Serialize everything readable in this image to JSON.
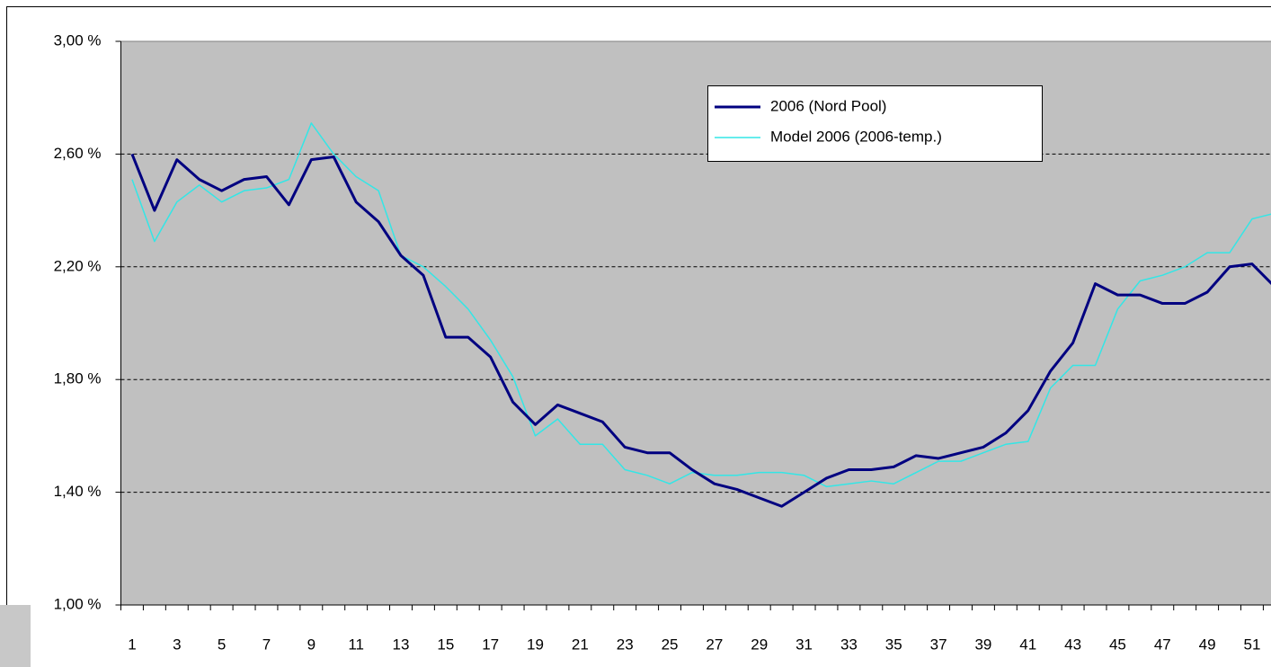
{
  "chart_data": {
    "type": "line",
    "categories": [
      1,
      null,
      3,
      null,
      5,
      null,
      7,
      null,
      9,
      null,
      11,
      null,
      13,
      null,
      15,
      null,
      17,
      null,
      19,
      null,
      21,
      null,
      23,
      null,
      25,
      null,
      27,
      null,
      29,
      null,
      31,
      null,
      33,
      null,
      35,
      null,
      37,
      null,
      39,
      null,
      41,
      null,
      43,
      null,
      45,
      null,
      47,
      null,
      49,
      null,
      51,
      null
    ],
    "series": [
      {
        "name": "2006 (Nord Pool)",
        "color": "#000080",
        "values": [
          2.6,
          2.4,
          2.58,
          2.51,
          2.47,
          2.51,
          2.52,
          2.42,
          2.58,
          2.59,
          2.43,
          2.36,
          2.24,
          2.17,
          1.95,
          1.95,
          1.88,
          1.72,
          1.64,
          1.71,
          1.68,
          1.65,
          1.56,
          1.54,
          1.54,
          1.48,
          1.43,
          1.41,
          1.38,
          1.35,
          1.4,
          1.45,
          1.48,
          1.48,
          1.49,
          1.53,
          1.52,
          1.54,
          1.56,
          1.61,
          1.69,
          1.83,
          1.93,
          2.14,
          2.1,
          2.1,
          2.07,
          2.07,
          2.11,
          2.2,
          2.21,
          2.13
        ]
      },
      {
        "name": "Model 2006 (2006-temp.)",
        "color": "#33e6e6",
        "values": [
          2.51,
          2.29,
          2.43,
          2.49,
          2.43,
          2.47,
          2.48,
          2.51,
          2.71,
          2.6,
          2.52,
          2.47,
          2.24,
          2.2,
          2.13,
          2.05,
          1.94,
          1.81,
          1.6,
          1.66,
          1.57,
          1.57,
          1.48,
          1.46,
          1.43,
          1.47,
          1.46,
          1.46,
          1.47,
          1.47,
          1.46,
          1.42,
          1.43,
          1.44,
          1.43,
          1.47,
          1.51,
          1.51,
          1.54,
          1.57,
          1.58,
          1.77,
          1.85,
          1.85,
          2.05,
          2.15,
          2.17,
          2.2,
          2.25,
          2.25,
          2.37,
          2.39
        ]
      }
    ],
    "ylim": [
      1.0,
      3.0
    ],
    "yticks": [
      {
        "value": 1.0,
        "label": "1,00 %"
      },
      {
        "value": 1.4,
        "label": "1,40 %"
      },
      {
        "value": 1.8,
        "label": "1,80 %"
      },
      {
        "value": 2.2,
        "label": "2,20 %"
      },
      {
        "value": 2.6,
        "label": "2,60 %"
      },
      {
        "value": 3.0,
        "label": "3,00 %"
      }
    ],
    "grid": true,
    "legend": "top-right"
  }
}
